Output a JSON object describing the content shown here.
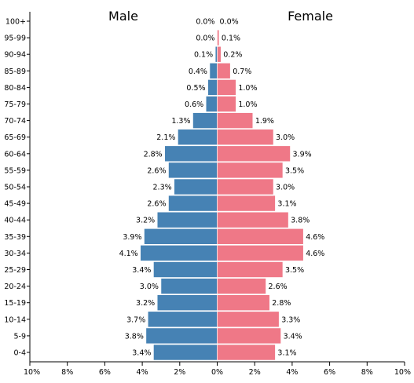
{
  "chart_data": {
    "type": "bar",
    "orientation": "horizontal",
    "layout": "population-pyramid",
    "categories": [
      "100+",
      "95-99",
      "90-94",
      "85-89",
      "80-84",
      "75-79",
      "70-74",
      "65-69",
      "60-64",
      "55-59",
      "50-54",
      "45-49",
      "40-44",
      "35-39",
      "30-34",
      "25-29",
      "20-24",
      "15-19",
      "10-14",
      "5-9",
      "0-4"
    ],
    "series": [
      {
        "name": "Male",
        "side": "left",
        "color": "#4682b4",
        "values": [
          0.0,
          0.0,
          0.1,
          0.4,
          0.5,
          0.6,
          1.3,
          2.1,
          2.8,
          2.6,
          2.3,
          2.6,
          3.2,
          3.9,
          4.1,
          3.4,
          3.0,
          3.2,
          3.7,
          3.8,
          3.4
        ],
        "labels": [
          "0.0%",
          "0.0%",
          "0.1%",
          "0.4%",
          "0.5%",
          "0.6%",
          "1.3%",
          "2.1%",
          "2.8%",
          "2.6%",
          "2.3%",
          "2.6%",
          "3.2%",
          "3.9%",
          "4.1%",
          "3.4%",
          "3.0%",
          "3.2%",
          "3.7%",
          "3.8%",
          "3.4%"
        ]
      },
      {
        "name": "Female",
        "side": "right",
        "color": "#ef7887",
        "values": [
          0.0,
          0.1,
          0.2,
          0.7,
          1.0,
          1.0,
          1.9,
          3.0,
          3.9,
          3.5,
          3.0,
          3.1,
          3.8,
          4.6,
          4.6,
          3.5,
          2.6,
          2.8,
          3.3,
          3.4,
          3.1
        ],
        "labels": [
          "0.0%",
          "0.1%",
          "0.2%",
          "0.7%",
          "1.0%",
          "1.0%",
          "1.9%",
          "3.0%",
          "3.9%",
          "3.5%",
          "3.0%",
          "3.1%",
          "3.8%",
          "4.6%",
          "4.6%",
          "3.5%",
          "2.6%",
          "2.8%",
          "3.3%",
          "3.4%",
          "3.1%"
        ]
      }
    ],
    "xlim": [
      -10,
      10
    ],
    "x_ticks": [
      -10,
      -8,
      -6,
      -4,
      -2,
      0,
      2,
      4,
      6,
      8,
      10
    ],
    "x_tick_labels": [
      "10%",
      "8%",
      "6%",
      "4%",
      "2%",
      "0%",
      "2%",
      "4%",
      "6%",
      "8%",
      "10%"
    ],
    "grid": false,
    "bar_edge_color": "#ffffff"
  }
}
